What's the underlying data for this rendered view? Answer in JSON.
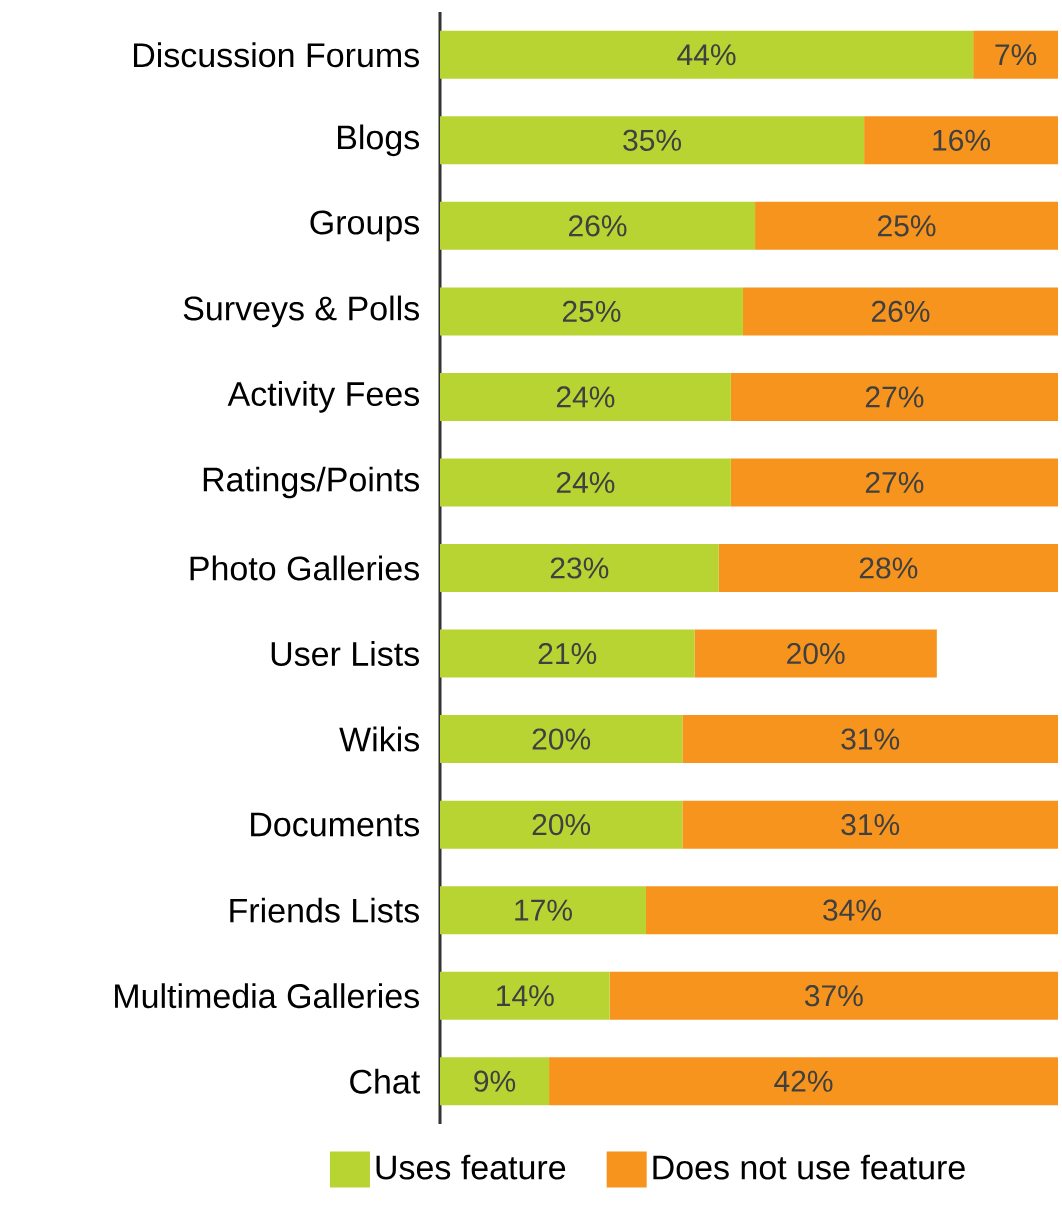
{
  "chart_data": {
    "type": "bar",
    "orientation": "horizontal",
    "stacked": true,
    "tick_labels": "y",
    "legend": "bottom",
    "categories": [
      "Discussion Forums",
      "Blogs",
      "Groups",
      "Surveys & Polls",
      "Activity Fees",
      "Ratings/Points",
      "Photo Galleries",
      "User Lists",
      "Wikis",
      "Documents",
      "Friends Lists",
      "Multimedia Galleries",
      "Chat"
    ],
    "series": [
      {
        "name": "Uses feature",
        "color": "#b8d432",
        "values": [
          44,
          35,
          26,
          25,
          24,
          24,
          23,
          21,
          20,
          20,
          17,
          14,
          9
        ],
        "value_labels": [
          "44%",
          "35%",
          "26%",
          "25%",
          "24%",
          "24%",
          "23%",
          "21%",
          "20%",
          "20%",
          "17%",
          "14%",
          "9%"
        ]
      },
      {
        "name": "Does not use feature",
        "color": "#f7941d",
        "values": [
          7,
          16,
          25,
          26,
          27,
          27,
          28,
          20,
          31,
          31,
          34,
          37,
          42
        ],
        "value_labels": [
          "7%",
          "16%",
          "25%",
          "26%",
          "27%",
          "27%",
          "28%",
          "20%",
          "31%",
          "31%",
          "34%",
          "37%",
          "42%"
        ]
      }
    ]
  }
}
